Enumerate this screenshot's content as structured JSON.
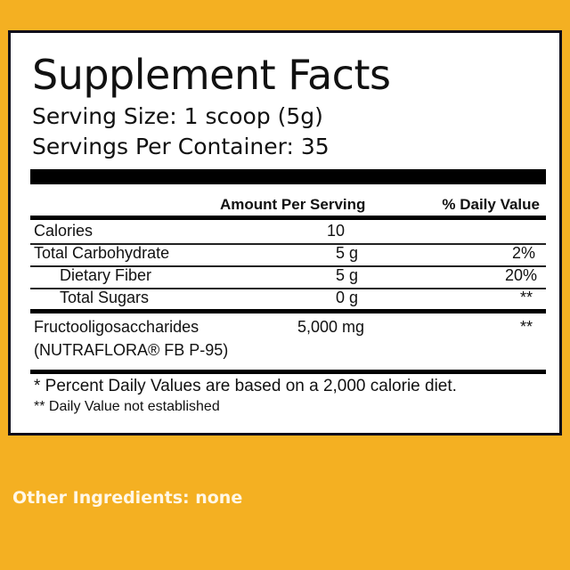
{
  "panel": {
    "title": "Supplement Facts",
    "serving_size": "Serving Size: 1 scoop (5g)",
    "servings_per_container": "Servings Per Container: 35"
  },
  "table": {
    "headers": {
      "amount": "Amount Per Serving",
      "daily_value": "% Daily Value"
    },
    "rows": [
      {
        "name": "Calories",
        "amount": "10",
        "dv": ""
      },
      {
        "name": "Total Carbohydrate",
        "amount": "5 g",
        "dv": "2%"
      },
      {
        "name": "Dietary Fiber",
        "amount": "5 g",
        "dv": "20%"
      },
      {
        "name": "Total Sugars",
        "amount": "0 g",
        "dv": "**"
      }
    ],
    "ingredient": {
      "name": "Fructooligosaccharides",
      "name_line2": "(NUTRAFLORA® FB P-95)",
      "amount": "5,000 mg",
      "dv": "**"
    }
  },
  "footnotes": {
    "percent": "* Percent Daily Values are based on a 2,000 calorie diet.",
    "not_established": "** Daily Value not established"
  },
  "other_ingredients": "Other Ingredients: none",
  "colors": {
    "background": "#f4b022",
    "panel": "#ffffff",
    "text": "#111111"
  }
}
